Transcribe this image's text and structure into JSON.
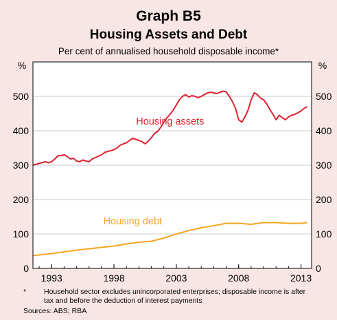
{
  "header": {
    "graph_label": "Graph B5",
    "title": "Housing Assets and Debt",
    "subtitle": "Per cent of annualised household disposable income*"
  },
  "footer": {
    "note_marker": "*",
    "note": "Household sector excludes unincorporated enterprises; disposable income is after tax and before the deduction of interest payments",
    "sources": "Sources: ABS; RBA"
  },
  "colors": {
    "background": "#f8e6e4",
    "plot_background": "#ffffff",
    "housing_assets": "#e0202e",
    "housing_debt": "#f5a623",
    "grid": "#c8c8c8"
  },
  "chart_data": {
    "type": "line",
    "title": "Housing Assets and Debt",
    "xlabel": "",
    "ylabel": "%",
    "y2label": "%",
    "ylim": [
      0,
      600
    ],
    "yticks": [
      0,
      100,
      200,
      300,
      400,
      500
    ],
    "xlim": [
      1991.5,
      2013.85
    ],
    "xticks": [
      1993,
      1998,
      2003,
      2008,
      2013
    ],
    "grid": true,
    "legend": "inline",
    "series": [
      {
        "name": "Housing assets",
        "color": "#e0202e",
        "label_at": [
          2002.5,
          418
        ],
        "x": [
          1991.5,
          1992.0,
          1992.5,
          1992.75,
          1993.0,
          1993.25,
          1993.5,
          1993.75,
          1994.0,
          1994.25,
          1994.5,
          1994.75,
          1995.0,
          1995.25,
          1995.5,
          1995.75,
          1996.0,
          1996.25,
          1996.5,
          1996.75,
          1997.0,
          1997.25,
          1997.5,
          1997.75,
          1998.0,
          1998.25,
          1998.5,
          1998.75,
          1999.0,
          1999.25,
          1999.5,
          1999.75,
          2000.0,
          2000.25,
          2000.5,
          2000.75,
          2001.0,
          2001.25,
          2001.5,
          2001.75,
          2002.0,
          2002.25,
          2002.5,
          2002.75,
          2003.0,
          2003.25,
          2003.5,
          2003.75,
          2004.0,
          2004.25,
          2004.5,
          2004.75,
          2005.0,
          2005.25,
          2005.5,
          2005.75,
          2006.0,
          2006.25,
          2006.5,
          2006.75,
          2007.0,
          2007.25,
          2007.5,
          2007.75,
          2008.0,
          2008.25,
          2008.5,
          2008.75,
          2009.0,
          2009.25,
          2009.5,
          2009.75,
          2010.0,
          2010.25,
          2010.5,
          2010.75,
          2011.0,
          2011.25,
          2011.5,
          2011.75,
          2012.0,
          2012.25,
          2012.5,
          2012.75,
          2013.0,
          2013.25,
          2013.5
        ],
        "values": [
          300,
          305,
          310,
          307,
          310,
          318,
          327,
          328,
          330,
          325,
          318,
          320,
          312,
          310,
          315,
          312,
          310,
          318,
          322,
          326,
          330,
          337,
          340,
          342,
          345,
          350,
          358,
          362,
          365,
          372,
          378,
          375,
          372,
          368,
          362,
          370,
          380,
          392,
          398,
          410,
          425,
          438,
          448,
          460,
          475,
          490,
          500,
          505,
          498,
          502,
          500,
          496,
          500,
          505,
          510,
          512,
          510,
          508,
          512,
          515,
          513,
          500,
          485,
          465,
          432,
          425,
          440,
          460,
          490,
          510,
          505,
          495,
          490,
          478,
          462,
          448,
          432,
          445,
          438,
          432,
          440,
          445,
          448,
          452,
          458,
          465,
          470
        ]
      },
      {
        "name": "Housing debt",
        "color": "#f5a623",
        "label_at": [
          1999.5,
          128
        ],
        "x": [
          1991.5,
          1992.0,
          1993.0,
          1994.0,
          1995.0,
          1996.0,
          1997.0,
          1998.0,
          1999.0,
          2000.0,
          2001.0,
          2002.0,
          2003.0,
          2004.0,
          2005.0,
          2006.0,
          2007.0,
          2008.0,
          2009.0,
          2010.0,
          2011.0,
          2012.0,
          2013.0,
          2013.5
        ],
        "values": [
          37,
          39,
          43,
          48,
          53,
          57,
          61,
          65,
          71,
          76,
          79,
          88,
          100,
          110,
          118,
          124,
          131,
          131,
          128,
          133,
          133,
          131,
          131,
          133
        ]
      }
    ]
  }
}
